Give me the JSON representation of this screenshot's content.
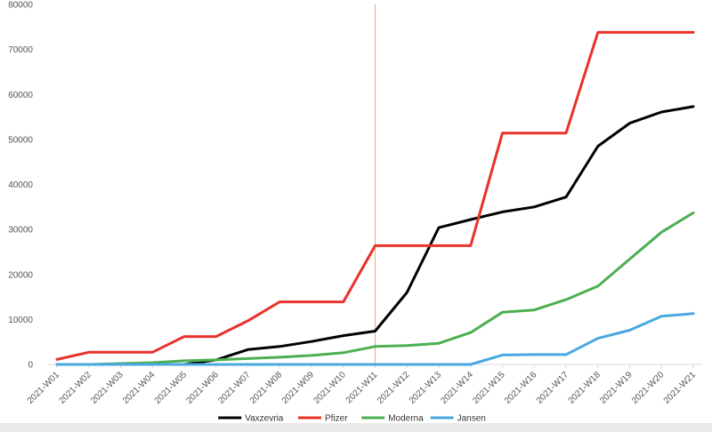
{
  "chart_data": {
    "type": "line",
    "title": "",
    "xlabel": "",
    "ylabel": "",
    "ylim": [
      0,
      80000
    ],
    "y_ticks": [
      "0",
      "10000",
      "20000",
      "30000",
      "40000",
      "50000",
      "60000",
      "70000",
      "80000"
    ],
    "categories": [
      "2021-W01",
      "2021-W02",
      "2021-W03",
      "2021-W04",
      "2021-W05",
      "2021-W06",
      "2021-W07",
      "2021-W08",
      "2021-W09",
      "2021-W10",
      "2021-W11",
      "2021-W12",
      "2021-W13",
      "2021-W14",
      "2021-W15",
      "2021-W16",
      "2021-W17",
      "2021-W18",
      "2021-W19",
      "2021-W20",
      "2021-W21"
    ],
    "grid": false,
    "legend_position": "bottom",
    "reference_line": {
      "category": "2021-W11",
      "color": "#f4a582"
    },
    "series": [
      {
        "name": "Vaxzevria",
        "color": "#000000",
        "values": [
          0,
          0,
          0,
          0,
          0,
          1000,
          3300,
          4000,
          5100,
          6400,
          7400,
          16000,
          30400,
          32200,
          33900,
          35000,
          37200,
          48500,
          53600,
          56100,
          57300
        ]
      },
      {
        "name": "Pfizer",
        "color": "#e8322b",
        "values": [
          1100,
          2700,
          2700,
          2700,
          6200,
          6200,
          9700,
          13900,
          13900,
          13900,
          26400,
          26400,
          26400,
          26400,
          51400,
          51400,
          51400,
          73800,
          73800,
          73800,
          73800
        ]
      },
      {
        "name": "Moderna",
        "color": "#4caf50",
        "values": [
          0,
          0,
          200,
          400,
          800,
          1000,
          1300,
          1600,
          2000,
          2600,
          4000,
          4200,
          4700,
          7100,
          11600,
          12100,
          14400,
          17400,
          23400,
          29400,
          33700
        ]
      },
      {
        "name": "Jansen",
        "color": "#4aa8e0",
        "values": [
          0,
          0,
          0,
          0,
          0,
          0,
          0,
          0,
          0,
          0,
          0,
          0,
          0,
          0,
          2100,
          2200,
          2200,
          5800,
          7600,
          10700,
          11300
        ]
      }
    ]
  }
}
